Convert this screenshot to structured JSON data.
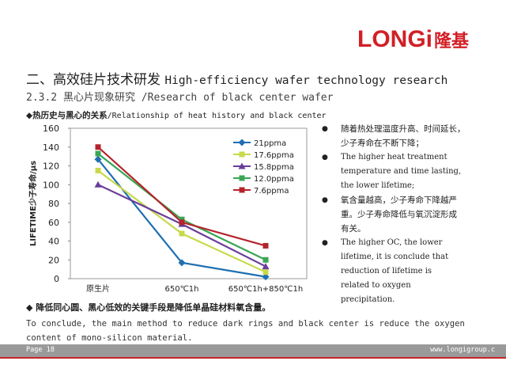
{
  "brand": {
    "logo_latin": "LONGi",
    "logo_cn": "隆基",
    "color": "#d21f26"
  },
  "title": {
    "cn": "二、高效硅片技术研发",
    "en": "High-efficiency wafer technology research"
  },
  "subtitle": {
    "cn": "2.3.2 黑心片现象研究",
    "en": "/Research of  black center wafer"
  },
  "relationship_heading": {
    "cn": "◆热历史与黑心的关系",
    "en": "/Relationship of heat history and black center"
  },
  "chart_data": {
    "type": "line",
    "categories": [
      "原生片",
      "650℃1h",
      "650℃1h+850℃1h"
    ],
    "ylabel": "LIFETIME少子寿命/μs",
    "ylim": [
      0,
      160
    ],
    "yticks": [
      0,
      20,
      40,
      60,
      80,
      100,
      120,
      140,
      160
    ],
    "grid": false,
    "legend_position": "right",
    "series": [
      {
        "name": "21ppma",
        "color": "#1f6fb2",
        "marker": "diamond",
        "values": [
          127,
          17,
          2
        ]
      },
      {
        "name": "17.6ppma",
        "color": "#c8d94a",
        "marker": "square",
        "values": [
          115,
          48,
          7
        ]
      },
      {
        "name": "15.8ppma",
        "color": "#6a3d9a",
        "marker": "triangle",
        "values": [
          100,
          58,
          13
        ]
      },
      {
        "name": "12.0ppma",
        "color": "#3aa655",
        "marker": "square",
        "values": [
          133,
          63,
          20
        ]
      },
      {
        "name": "7.6ppma",
        "color": "#b5242b",
        "marker": "square",
        "values": [
          140,
          60,
          35
        ]
      }
    ]
  },
  "bullets": [
    {
      "lang": "cn",
      "lines": [
        "随着热处理温度升高、时间延长，",
        "少子寿命在不断下降；"
      ]
    },
    {
      "lang": "en",
      "lines": [
        "The  higher  heat  treatment",
        "temperature and time lasting,",
        "the lower lifetime;"
      ]
    },
    {
      "lang": "cn",
      "lines": [
        "氧含量越高，少子寿命下降越严",
        "重。少子寿命降低与氧沉淀形成",
        "有关。"
      ]
    },
    {
      "lang": "en",
      "lines": [
        "The higher OC, the lower",
        "lifetime, it is conclude that",
        "reduction of lifetime is",
        "related to oxygen",
        "precipitation."
      ]
    }
  ],
  "conclusion": {
    "cn": "◆  降低同心圆、黑心低效的关键手段是降低单晶硅材料氧含量。",
    "en": "To conclude, the main method to reduce dark rings and black center is reduce the oxygen content of mono-silicon material."
  },
  "footer": {
    "page": "Page 18",
    "url": "www.longigroup.c"
  }
}
